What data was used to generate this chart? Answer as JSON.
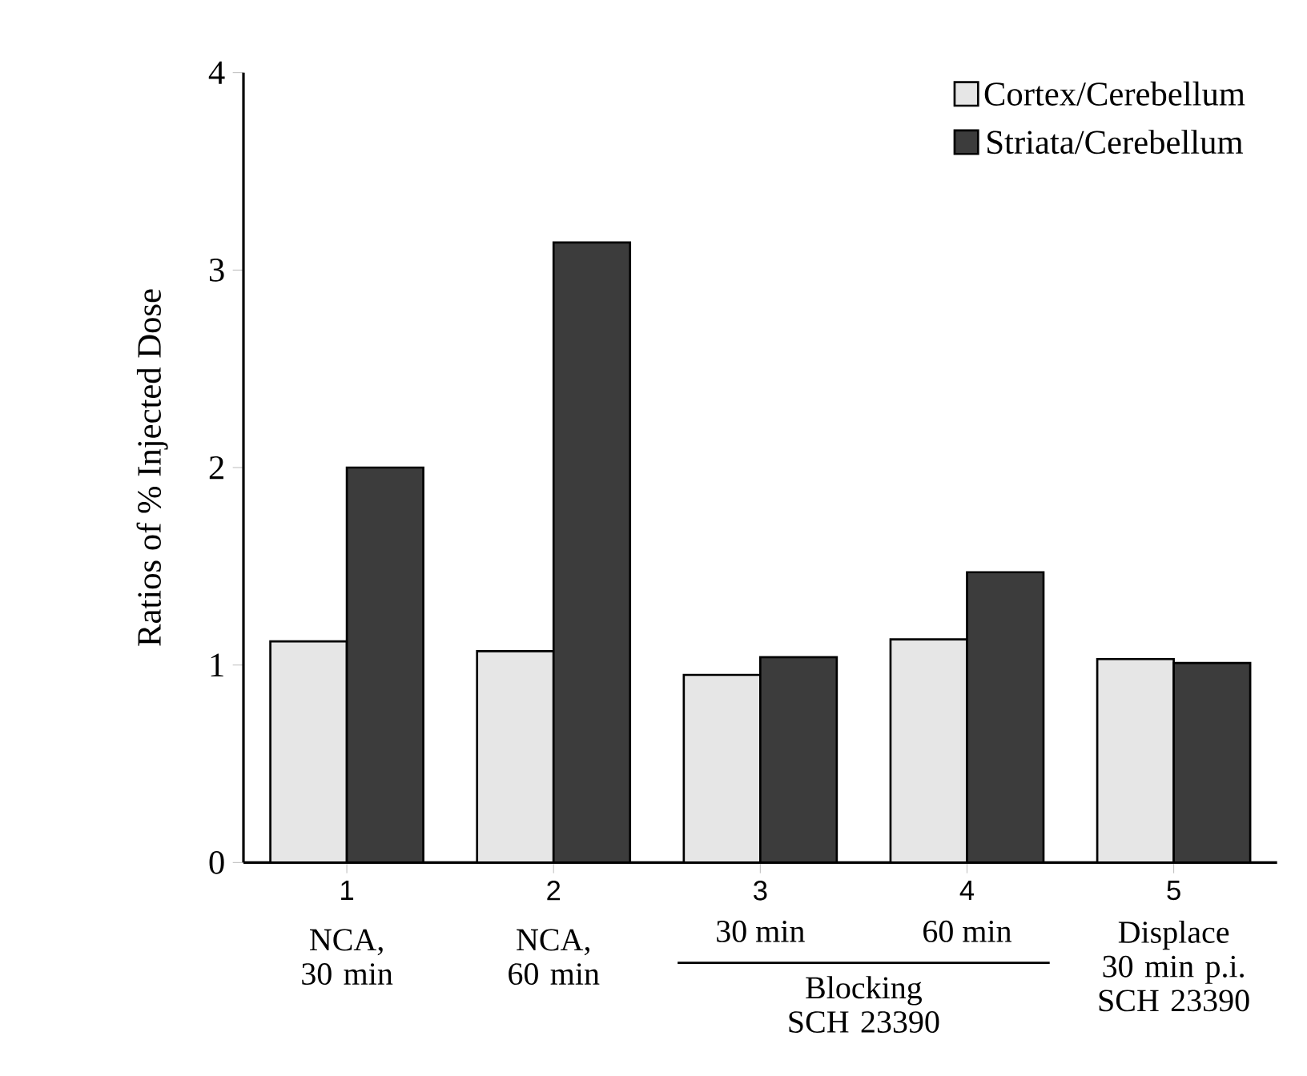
{
  "chart_data": {
    "type": "bar",
    "ylabel": "Ratios of % Injected Dose",
    "categories": [
      "1",
      "2",
      "3",
      "4",
      "5"
    ],
    "series": [
      {
        "name": "Cortex/Cerebellum",
        "color": "#e6e6e6",
        "values": [
          1.12,
          1.07,
          0.95,
          1.13,
          1.03
        ]
      },
      {
        "name": "Striata/Cerebellum",
        "color": "#3c3c3c",
        "values": [
          2.0,
          3.14,
          1.04,
          1.47,
          1.01
        ]
      }
    ],
    "ylim": [
      0,
      4
    ],
    "yticks": [
      0,
      1,
      2,
      3,
      4
    ],
    "legend": "top right",
    "annotations": [
      "NCA, 30 min",
      "NCA, 60 min",
      "30 min",
      "60 min",
      "Blocking SCH 23390",
      "Displace 30 min p.i. SCH 23390"
    ]
  }
}
